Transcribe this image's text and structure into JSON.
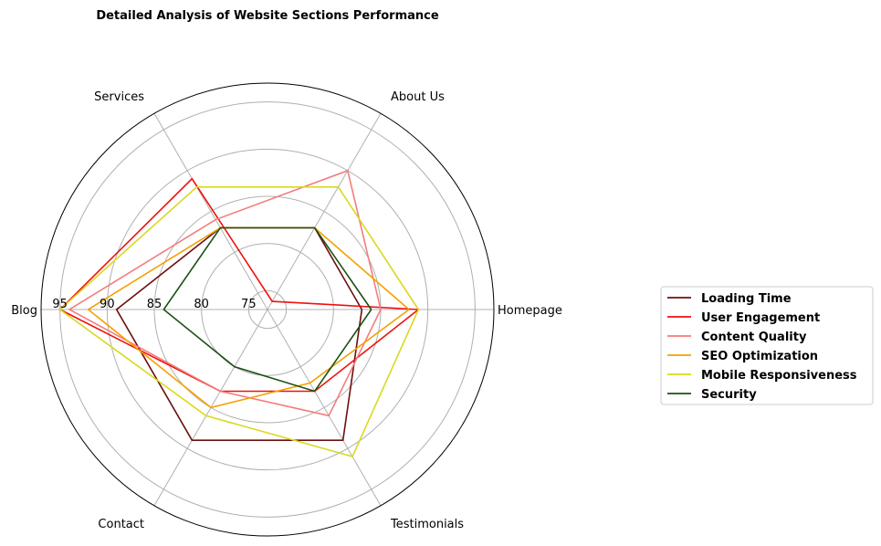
{
  "chart_data": {
    "type": "radar",
    "title": "Detailed Analysis of Website Sections Performance",
    "categories": [
      "Homepage",
      "About Us",
      "Services",
      "Blog",
      "Contact",
      "Testimonials"
    ],
    "radial_ticks": [
      75,
      80,
      85,
      90,
      95
    ],
    "rlim": [
      73,
      97
    ],
    "grid": true,
    "legend_position": "right",
    "series": [
      {
        "name": "Loading Time",
        "color": "#6b0f0f",
        "values": [
          83,
          83,
          83,
          89,
          89,
          89
        ]
      },
      {
        "name": "User Engagement",
        "color": "#ee1111",
        "values": [
          89,
          74,
          89,
          95,
          83,
          83
        ]
      },
      {
        "name": "Content Quality",
        "color": "#f47c7c",
        "values": [
          85,
          90,
          84,
          94,
          83,
          86
        ]
      },
      {
        "name": "SEO Optimization",
        "color": "#f5a000",
        "values": [
          88,
          83,
          83,
          92,
          85,
          82
        ]
      },
      {
        "name": "Mobile Responsiveness",
        "color": "#d9d91f",
        "values": [
          89,
          88,
          88,
          95,
          86,
          91
        ]
      },
      {
        "name": "Security",
        "color": "#1a5214",
        "values": [
          84,
          83,
          83,
          84,
          80,
          83
        ]
      }
    ]
  }
}
